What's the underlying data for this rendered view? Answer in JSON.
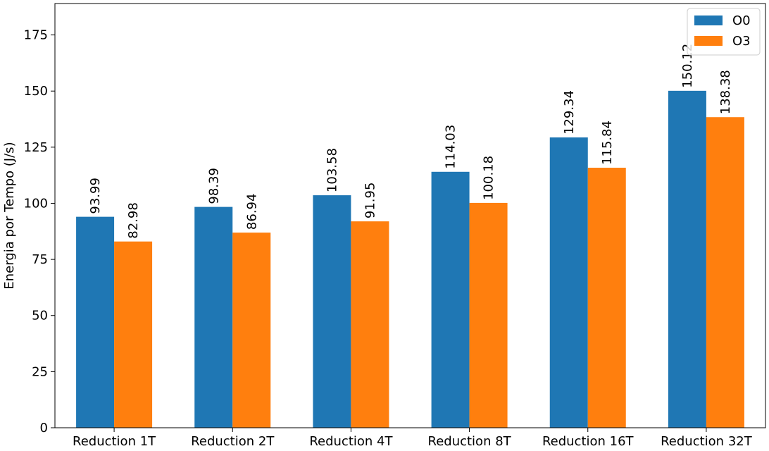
{
  "chart_data": {
    "type": "bar",
    "title": "",
    "xlabel": "",
    "ylabel": "Energia por Tempo (J/s)",
    "categories": [
      "Reduction 1T",
      "Reduction 2T",
      "Reduction 4T",
      "Reduction 8T",
      "Reduction 16T",
      "Reduction 32T"
    ],
    "series": [
      {
        "name": "O0",
        "color": "#1f77b4",
        "values": [
          93.99,
          98.39,
          103.58,
          114.03,
          129.34,
          150.12
        ]
      },
      {
        "name": "O3",
        "color": "#ff7f0e",
        "values": [
          82.98,
          86.94,
          91.95,
          100.18,
          115.84,
          138.38
        ]
      }
    ],
    "value_labels": [
      [
        "93.99",
        "98.39",
        "103.58",
        "114.03",
        "129.34",
        "150.12"
      ],
      [
        "82.98",
        "86.94",
        "91.95",
        "100.18",
        "115.84",
        "138.38"
      ]
    ],
    "ylim": [
      0,
      189
    ],
    "yticks": [
      0,
      25,
      50,
      75,
      100,
      125,
      150,
      175
    ],
    "ytick_labels": [
      "0",
      "25",
      "50",
      "75",
      "100",
      "125",
      "150",
      "175"
    ],
    "grid": false,
    "legend_position": "top-right"
  }
}
